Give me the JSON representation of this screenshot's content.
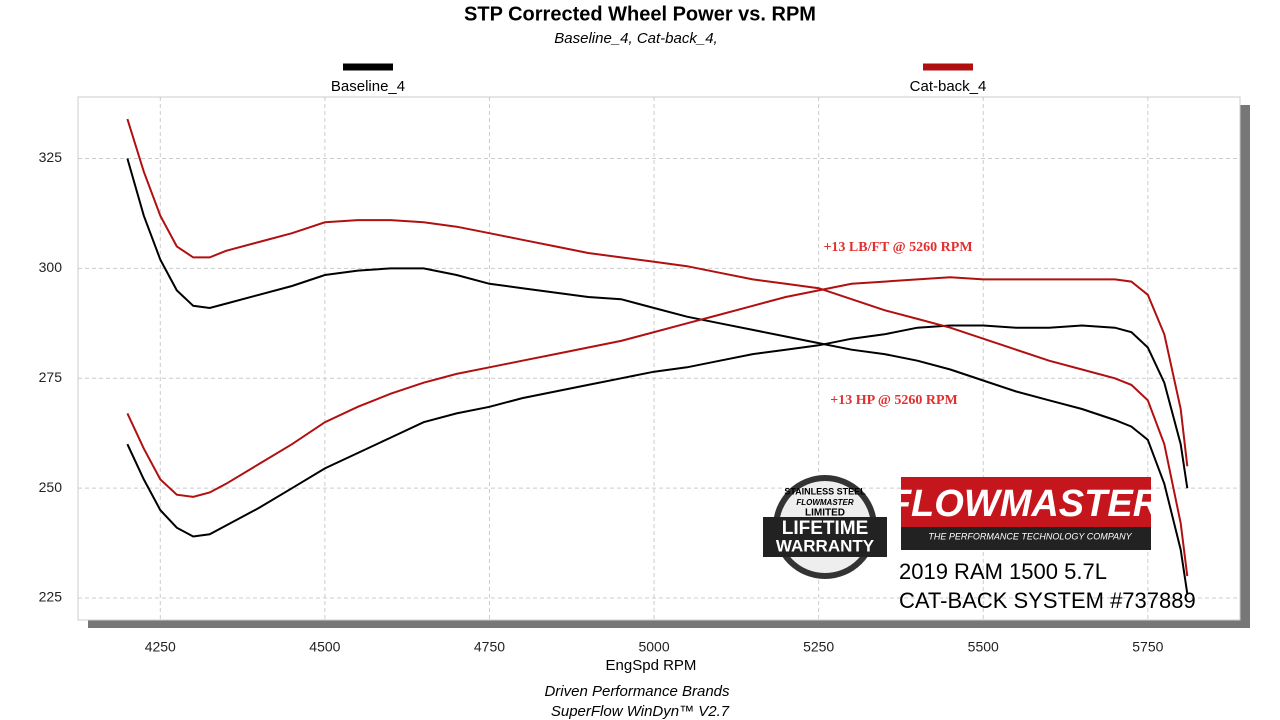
{
  "chart_data": {
    "type": "line",
    "title": "STP Corrected Wheel Power vs. RPM",
    "subtitle": "Baseline_4, Cat-back_4,",
    "x_label": "EngSpd  RPM",
    "x": [
      4200,
      4225,
      4250,
      4275,
      4300,
      4325,
      4350,
      4400,
      4450,
      4500,
      4550,
      4600,
      4650,
      4700,
      4750,
      4800,
      4850,
      4900,
      4950,
      5000,
      5050,
      5100,
      5150,
      5200,
      5250,
      5300,
      5350,
      5400,
      5450,
      5500,
      5550,
      5600,
      5650,
      5700,
      5725,
      5750,
      5775,
      5800,
      5810
    ],
    "series": [
      {
        "name": "Baseline_4",
        "color": "#000000",
        "curves": [
          [
            325,
            312,
            302,
            295,
            291.5,
            291,
            292,
            294,
            296,
            298.5,
            299.5,
            300,
            300,
            298.5,
            296.5,
            295.5,
            294.5,
            293.5,
            293,
            291,
            289,
            287.5,
            286,
            284.5,
            283,
            281.5,
            280.5,
            279,
            277,
            274.5,
            272,
            270,
            268,
            265.5,
            264,
            261,
            251,
            236,
            226
          ],
          [
            260,
            252,
            245,
            241,
            239,
            239.5,
            241.5,
            245.5,
            250,
            254.5,
            258,
            261.5,
            265,
            267,
            268.5,
            270.5,
            272,
            273.5,
            275,
            276.5,
            277.5,
            279,
            280.5,
            281.5,
            282.5,
            284,
            285,
            286.5,
            287,
            287,
            286.5,
            286.5,
            287,
            286.5,
            285.5,
            282,
            274,
            260,
            250
          ]
        ]
      },
      {
        "name": "Cat-back_4",
        "color": "#b01010",
        "curves": [
          [
            334,
            322,
            312,
            305,
            302.5,
            302.5,
            304,
            306,
            308,
            310.5,
            311,
            311,
            310.5,
            309.5,
            308,
            306.5,
            305,
            303.5,
            302.5,
            301.5,
            300.5,
            299,
            297.5,
            296.5,
            295.5,
            293,
            290.5,
            288.5,
            286.5,
            284,
            281.5,
            279,
            277,
            275,
            273.5,
            270,
            260,
            242,
            230
          ],
          [
            267,
            259,
            252,
            248.5,
            248,
            249,
            251,
            255.5,
            260,
            265,
            268.5,
            271.5,
            274,
            276,
            277.5,
            279,
            280.5,
            282,
            283.5,
            285.5,
            287.5,
            289.5,
            291.5,
            293.5,
            295,
            296.5,
            297,
            297.5,
            298,
            297.5,
            297.5,
            297.5,
            297.5,
            297.5,
            297,
            294,
            285,
            268,
            255
          ]
        ]
      }
    ],
    "xlim": [
      4125,
      5890
    ],
    "ylim": [
      220,
      339
    ],
    "xticks": [
      4250,
      4500,
      4750,
      5000,
      5250,
      5500,
      5750
    ],
    "yticks": [
      225,
      250,
      275,
      300,
      325
    ],
    "grid": true,
    "annotations": [
      "+13 LB/FT @ 5260 RPM",
      "+13 HP @ 5260 RPM"
    ],
    "footer": [
      "Driven Performance Brands",
      "SuperFlow WinDyn™  V2.7"
    ]
  },
  "branding": {
    "badge": [
      "STAINLESS STEEL",
      "FLOWMASTER",
      "LIMITED",
      "LIFETIME",
      "WARRANTY"
    ],
    "logo": "FLOWMASTER",
    "logo_tagline": "THE PERFORMANCE TECHNOLOGY COMPANY",
    "vehicle": "2019 RAM 1500 5.7L",
    "product": "CAT-BACK SYSTEM #737889"
  }
}
